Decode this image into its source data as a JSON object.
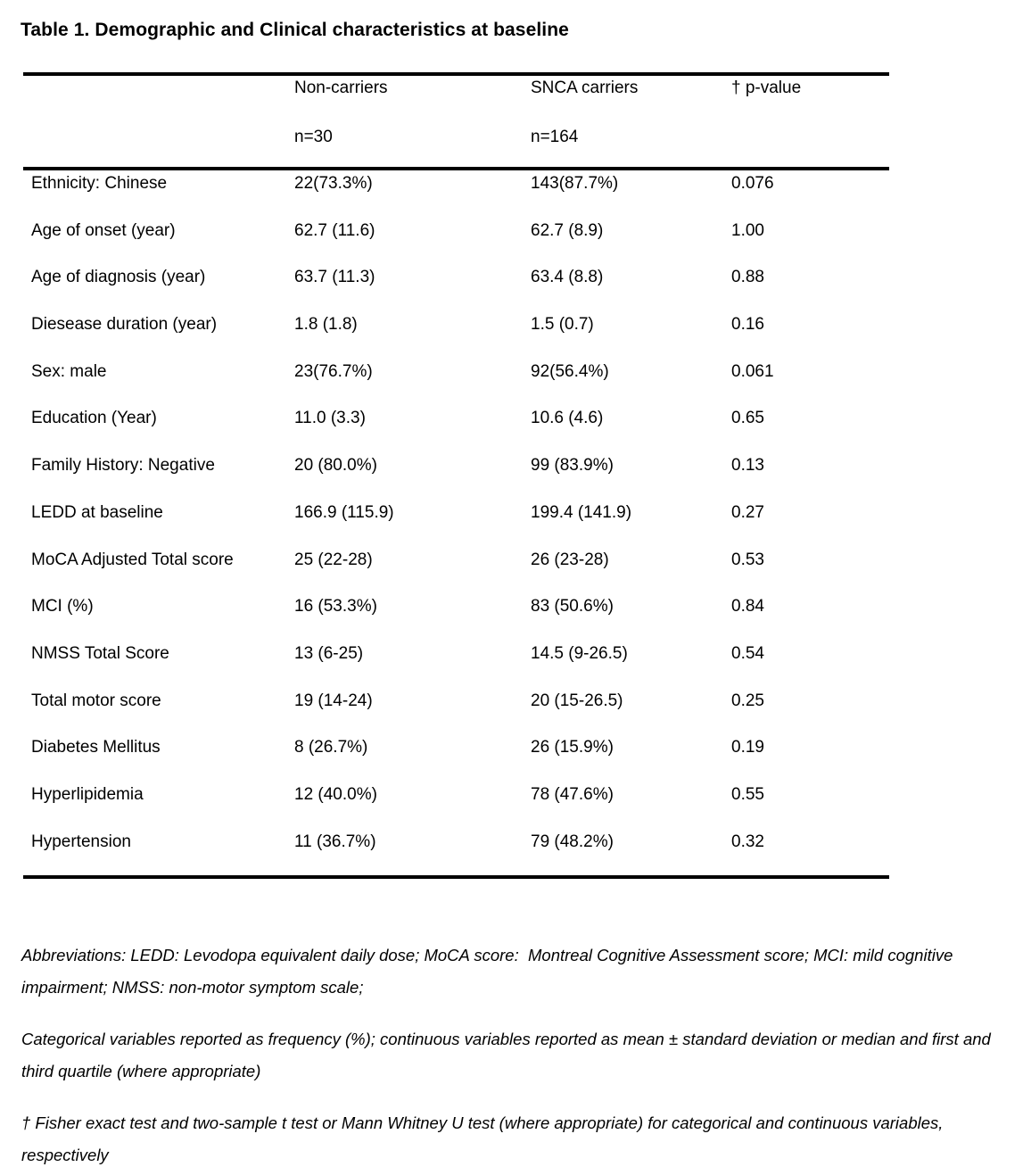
{
  "title": "Table 1. Demographic and Clinical characteristics at baseline",
  "table": {
    "header": {
      "non_carriers": "Non-carriers",
      "snca_carriers": "SNCA carriers",
      "p_value": "† p-value",
      "non_carriers_n": "n=30",
      "snca_carriers_n": "n=164"
    },
    "rows": [
      {
        "label": "Ethnicity: Chinese",
        "non_carriers": "22(73.3%)",
        "snca_carriers": "143(87.7%)",
        "p_value": "0.076"
      },
      {
        "label": "Age of onset (year)",
        "non_carriers": "62.7 (11.6)",
        "snca_carriers": "62.7 (8.9)",
        "p_value": "1.00"
      },
      {
        "label": "Age of diagnosis (year)",
        "non_carriers": "63.7 (11.3)",
        "snca_carriers": "63.4 (8.8)",
        "p_value": "0.88"
      },
      {
        "label": "Diesease duration (year)",
        "non_carriers": "1.8 (1.8)",
        "snca_carriers": "1.5 (0.7)",
        "p_value": "0.16"
      },
      {
        "label": "Sex: male",
        "non_carriers": "23(76.7%)",
        "snca_carriers": "92(56.4%)",
        "p_value": "0.061"
      },
      {
        "label": "Education (Year)",
        "non_carriers": "11.0 (3.3)",
        "snca_carriers": "10.6 (4.6)",
        "p_value": "0.65"
      },
      {
        "label": "Family History: Negative",
        "non_carriers": "20 (80.0%)",
        "snca_carriers": "99 (83.9%)",
        "p_value": "0.13"
      },
      {
        "label": "LEDD at baseline",
        "non_carriers": "166.9 (115.9)",
        "snca_carriers": "199.4 (141.9)",
        "p_value": "0.27"
      },
      {
        "label": "MoCA Adjusted Total score",
        "non_carriers": "25 (22-28)",
        "snca_carriers": "26 (23-28)",
        "p_value": "0.53"
      },
      {
        "label": "MCI (%)",
        "non_carriers": "16 (53.3%)",
        "snca_carriers": "83 (50.6%)",
        "p_value": "0.84"
      },
      {
        "label": "NMSS Total Score",
        "non_carriers": "13 (6-25)",
        "snca_carriers": "14.5 (9-26.5)",
        "p_value": "0.54"
      },
      {
        "label": "Total motor score",
        "non_carriers": "19 (14-24)",
        "snca_carriers": "20 (15-26.5)",
        "p_value": "0.25"
      },
      {
        "label": "Diabetes Mellitus",
        "non_carriers": "8 (26.7%)",
        "snca_carriers": "26 (15.9%)",
        "p_value": "0.19"
      },
      {
        "label": "Hyperlipidemia",
        "non_carriers": "12 (40.0%)",
        "snca_carriers": "78 (47.6%)",
        "p_value": "0.55"
      },
      {
        "label": "Hypertension",
        "non_carriers": "11 (36.7%)",
        "snca_carriers": "79 (48.2%)",
        "p_value": "0.32"
      }
    ]
  },
  "footnotes": [
    "Abbreviations: LEDD: Levodopa equivalent daily dose; MoCA score:  Montreal Cognitive Assessment score; MCI: mild cognitive impairment; NMSS: non-motor symptom scale;",
    "Categorical variables reported as frequency (%); continuous variables reported as mean ± standard deviation or median and first and third quartile (where appropriate)",
    "† Fisher exact test and two-sample t test or Mann Whitney U test (where appropriate) for categorical and continuous variables, respectively"
  ],
  "colors": {
    "text": "#000000",
    "background": "#ffffff",
    "rule": "#000000"
  }
}
